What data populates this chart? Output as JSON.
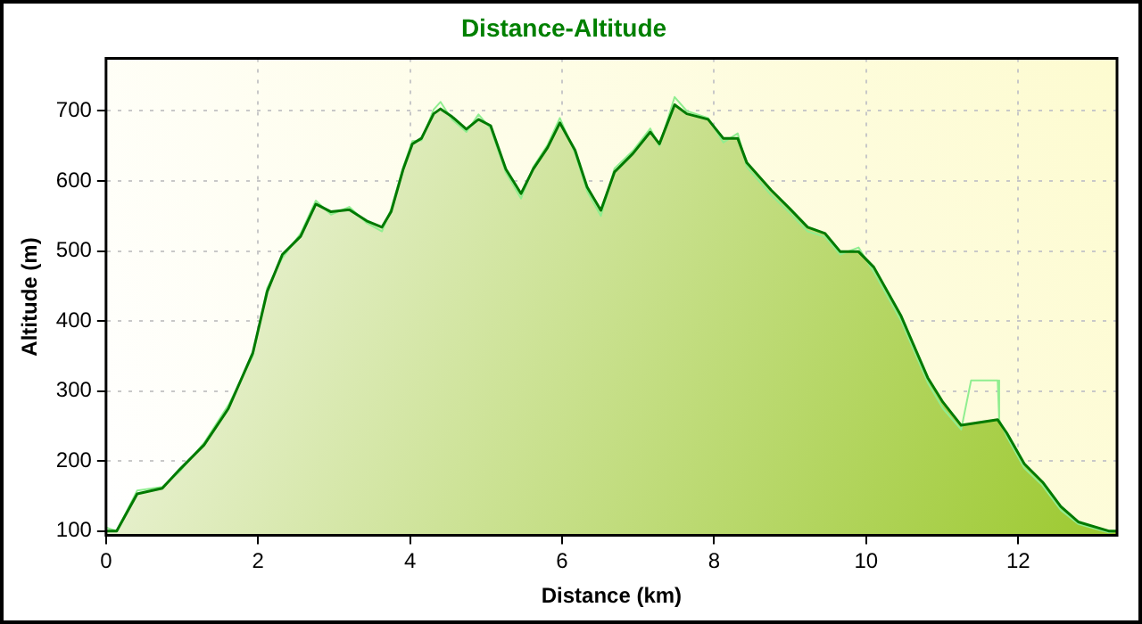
{
  "chart_data": {
    "type": "area",
    "title": "Distance-Altitude",
    "xlabel": "Distance (km)",
    "ylabel": "Altitude (m)",
    "xlim": [
      0,
      13.3
    ],
    "xticks": [
      0,
      2,
      4,
      6,
      8,
      10,
      12
    ],
    "ylim": [
      94,
      775
    ],
    "yticks": [
      100,
      200,
      300,
      400,
      500,
      600,
      700
    ],
    "grid": true,
    "legend": false,
    "marker": "none",
    "series": [
      {
        "type": "area",
        "color": "#007a00",
        "x": [
          0,
          0.14,
          0.41,
          0.74,
          0.97,
          1.29,
          1.61,
          1.93,
          2.12,
          2.32,
          2.56,
          2.76,
          2.96,
          3.2,
          3.43,
          3.63,
          3.75,
          3.91,
          4.03,
          4.15,
          4.31,
          4.4,
          4.55,
          4.74,
          4.9,
          5.06,
          5.26,
          5.46,
          5.62,
          5.81,
          5.97,
          6.17,
          6.33,
          6.51,
          6.69,
          6.93,
          7.16,
          7.28,
          7.48,
          7.64,
          7.92,
          8.12,
          8.31,
          8.43,
          8.75,
          8.99,
          9.23,
          9.46,
          9.66,
          9.9,
          10.1,
          10.46,
          10.81,
          11.01,
          11.25,
          11.73,
          11.85,
          12.08,
          12.32,
          12.56,
          12.79,
          13.19,
          13.3
        ],
        "values": [
          100,
          100,
          153,
          161,
          188,
          223,
          275,
          354,
          442,
          495,
          521,
          567,
          556,
          559,
          543,
          534,
          556,
          617,
          653,
          661,
          696,
          703,
          692,
          674,
          688,
          679,
          617,
          582,
          617,
          648,
          683,
          644,
          591,
          558,
          613,
          639,
          670,
          653,
          709,
          696,
          688,
          661,
          661,
          626,
          587,
          561,
          534,
          525,
          499,
          499,
          477,
          407,
          319,
          284,
          251,
          259,
          240,
          196,
          170,
          135,
          113,
          100,
          100
        ]
      },
      {
        "type": "line",
        "color": "#90ee90",
        "x": [
          0,
          0.14,
          0.41,
          0.74,
          0.97,
          1.29,
          1.61,
          1.93,
          2.12,
          2.32,
          2.56,
          2.76,
          2.96,
          3.2,
          3.43,
          3.63,
          3.75,
          3.91,
          4.03,
          4.15,
          4.31,
          4.4,
          4.55,
          4.74,
          4.9,
          5.06,
          5.26,
          5.46,
          5.62,
          5.81,
          5.97,
          6.17,
          6.33,
          6.51,
          6.69,
          6.93,
          7.16,
          7.28,
          7.48,
          7.64,
          7.92,
          8.12,
          8.31,
          8.43,
          8.75,
          8.99,
          9.23,
          9.46,
          9.66,
          9.9,
          10.1,
          10.46,
          10.81,
          11.01,
          11.25,
          11.38,
          11.73,
          11.75,
          11.85,
          12.08,
          12.32,
          12.56,
          12.79,
          13.19,
          13.3
        ],
        "values": [
          105,
          100,
          158,
          163,
          185,
          226,
          280,
          350,
          447,
          490,
          525,
          572,
          552,
          563,
          540,
          528,
          560,
          620,
          657,
          658,
          702,
          713,
          688,
          670,
          695,
          675,
          612,
          575,
          620,
          652,
          690,
          640,
          585,
          550,
          618,
          643,
          675,
          650,
          720,
          700,
          690,
          655,
          668,
          620,
          580,
          555,
          528,
          520,
          495,
          505,
          470,
          400,
          312,
          275,
          245,
          315,
          315,
          259,
          235,
          190,
          165,
          130,
          110,
          98,
          100
        ]
      }
    ]
  }
}
